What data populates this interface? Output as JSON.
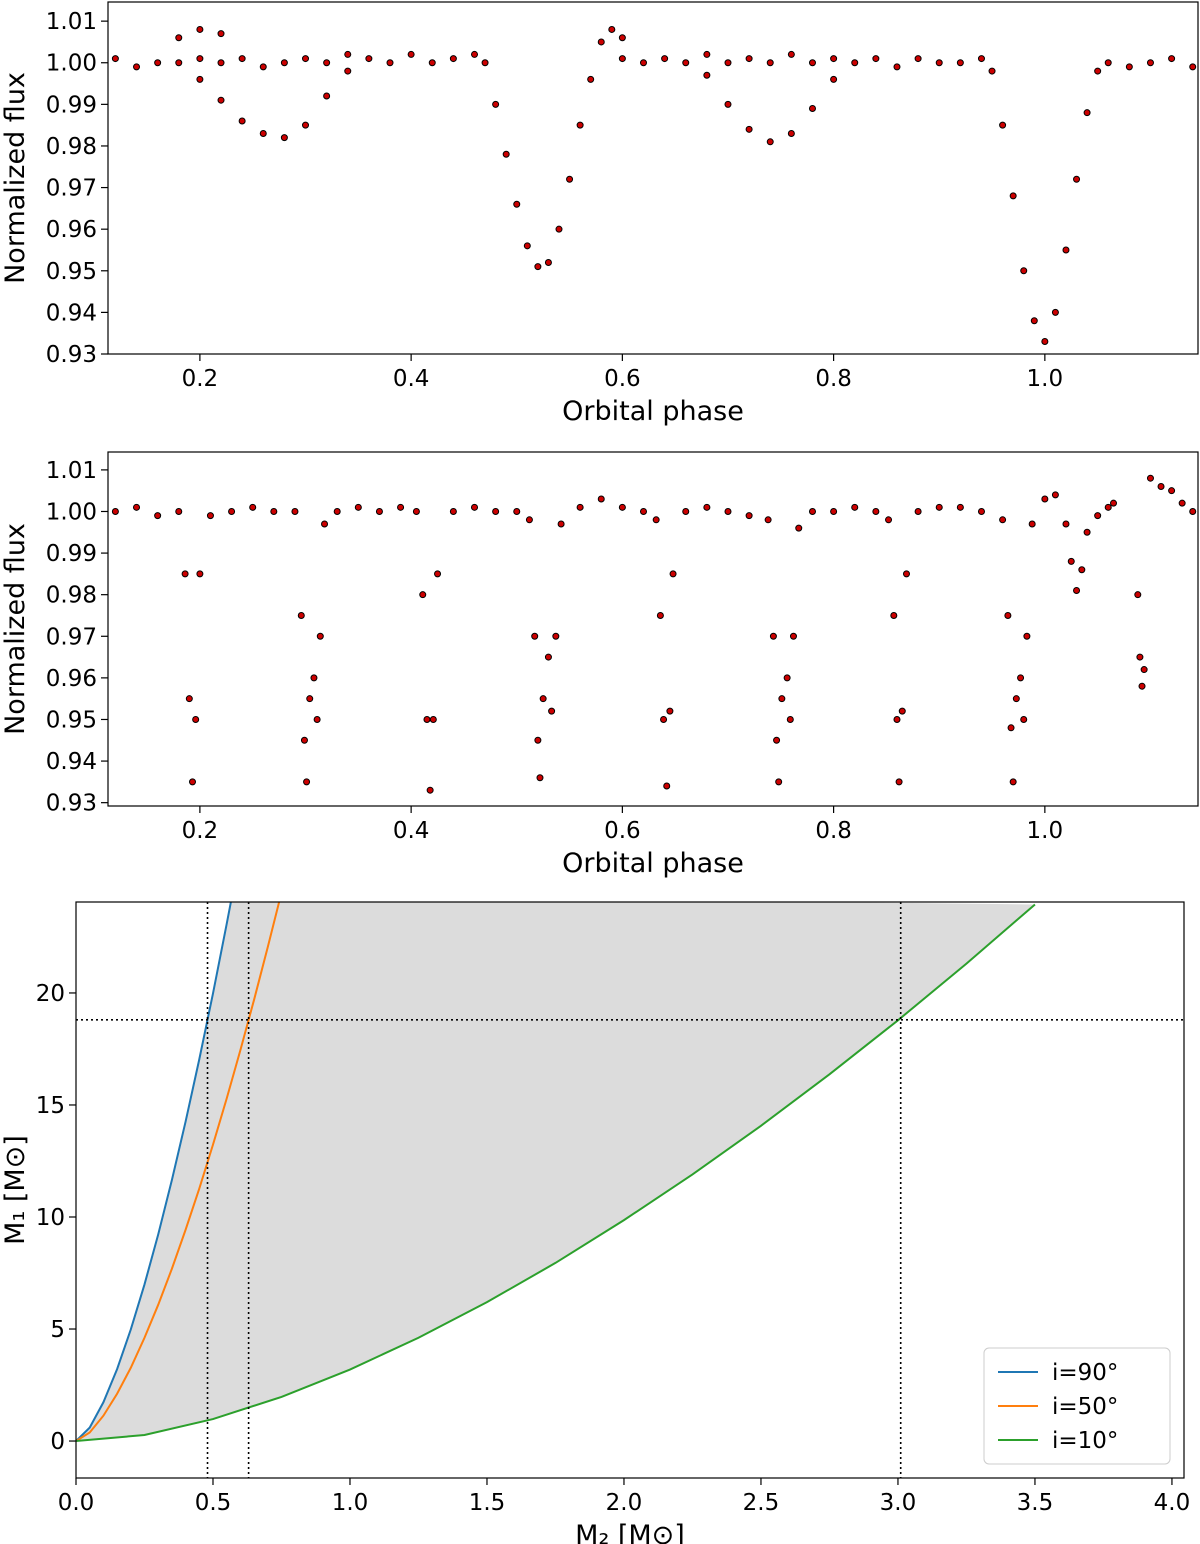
{
  "chart_data": [
    {
      "type": "scatter",
      "xlabel": "Orbital phase",
      "ylabel": "Normalized flux",
      "color": "#cc0000",
      "edgecolor": "#000000",
      "xlim": [
        0.113,
        1.145
      ],
      "ylim": [
        0.93,
        1.0146
      ],
      "xticks": [
        0.2,
        0.4,
        0.6,
        0.8,
        {
          "value": 1,
          "label": "1.0"
        }
      ],
      "yticks": [
        0.93,
        0.94,
        0.95,
        0.96,
        0.97,
        0.98,
        0.99,
        {
          "value": 1,
          "label": "1.00"
        },
        1.01
      ],
      "x": [
        0.12,
        0.14,
        0.16,
        0.18,
        0.18,
        0.2,
        0.2,
        0.2,
        0.22,
        0.22,
        0.22,
        0.24,
        0.24,
        0.26,
        0.26,
        0.28,
        0.28,
        0.3,
        0.3,
        0.32,
        0.32,
        0.34,
        0.34,
        0.36,
        0.38,
        0.4,
        0.42,
        0.44,
        0.46,
        0.47,
        0.48,
        0.49,
        0.5,
        0.51,
        0.52,
        0.53,
        0.54,
        0.55,
        0.56,
        0.57,
        0.58,
        0.59,
        0.6,
        0.6,
        0.62,
        0.64,
        0.66,
        0.68,
        0.68,
        0.7,
        0.7,
        0.72,
        0.72,
        0.74,
        0.74,
        0.76,
        0.76,
        0.78,
        0.78,
        0.8,
        0.8,
        0.82,
        0.84,
        0.86,
        0.88,
        0.9,
        0.92,
        0.94,
        0.95,
        0.96,
        0.97,
        0.98,
        0.99,
        1.0,
        1.01,
        1.02,
        1.03,
        1.04,
        1.05,
        1.06,
        1.08,
        1.1,
        1.12,
        1.14
      ],
      "values": [
        1.001,
        0.999,
        1.0,
        1.006,
        1.0,
        1.008,
        0.996,
        1.001,
        1.007,
        0.991,
        1.0,
        0.986,
        1.001,
        0.983,
        0.999,
        0.982,
        1.0,
        0.985,
        1.001,
        0.992,
        1.0,
        0.998,
        1.002,
        1.001,
        1.0,
        1.002,
        1.0,
        1.001,
        1.002,
        1.0,
        0.99,
        0.978,
        0.966,
        0.956,
        0.951,
        0.952,
        0.96,
        0.972,
        0.985,
        0.996,
        1.005,
        1.008,
        1.006,
        1.001,
        1.0,
        1.001,
        1.0,
        0.997,
        1.002,
        0.99,
        1.0,
        0.984,
        1.001,
        0.981,
        1.0,
        0.983,
        1.002,
        0.989,
        1.0,
        0.996,
        1.001,
        1.0,
        1.001,
        0.999,
        1.001,
        1.0,
        1.0,
        1.001,
        0.998,
        0.985,
        0.968,
        0.95,
        0.938,
        0.933,
        0.94,
        0.955,
        0.972,
        0.988,
        0.998,
        1.0,
        0.999,
        1.0,
        1.001,
        0.999
      ]
    },
    {
      "type": "scatter",
      "xlabel": "Orbital phase",
      "ylabel": "Normalized flux",
      "color": "#cc0000",
      "edgecolor": "#000000",
      "xlim": [
        0.113,
        1.145
      ],
      "ylim": [
        0.9292,
        1.0143
      ],
      "xticks": [
        0.2,
        0.4,
        0.6,
        0.8,
        {
          "value": 1,
          "label": "1.0"
        }
      ],
      "yticks": [
        0.93,
        0.94,
        0.95,
        0.96,
        0.97,
        0.98,
        0.99,
        {
          "value": 1,
          "label": "1.00"
        },
        1.01
      ],
      "x": [
        0.12,
        0.14,
        0.16,
        0.18,
        0.186,
        0.19,
        0.193,
        0.196,
        0.2,
        0.21,
        0.23,
        0.25,
        0.27,
        0.29,
        0.296,
        0.299,
        0.301,
        0.304,
        0.308,
        0.311,
        0.314,
        0.318,
        0.33,
        0.35,
        0.37,
        0.39,
        0.405,
        0.411,
        0.415,
        0.418,
        0.421,
        0.425,
        0.44,
        0.46,
        0.48,
        0.5,
        0.512,
        0.517,
        0.52,
        0.522,
        0.525,
        0.53,
        0.533,
        0.537,
        0.542,
        0.56,
        0.58,
        0.6,
        0.62,
        0.632,
        0.636,
        0.639,
        0.642,
        0.645,
        0.648,
        0.66,
        0.68,
        0.7,
        0.72,
        0.738,
        0.743,
        0.746,
        0.748,
        0.751,
        0.756,
        0.759,
        0.762,
        0.767,
        0.78,
        0.8,
        0.82,
        0.84,
        0.852,
        0.857,
        0.86,
        0.862,
        0.865,
        0.869,
        0.88,
        0.9,
        0.92,
        0.94,
        0.96,
        0.965,
        0.968,
        0.97,
        0.973,
        0.977,
        0.98,
        0.983,
        0.988,
        1.0,
        1.01,
        1.02,
        1.025,
        1.03,
        1.035,
        1.04,
        1.05,
        1.06,
        1.065,
        1.088,
        1.09,
        1.092,
        1.094,
        1.1,
        1.11,
        1.12,
        1.13,
        1.14
      ],
      "values": [
        1.0,
        1.001,
        0.999,
        1.0,
        0.985,
        0.955,
        0.935,
        0.95,
        0.985,
        0.999,
        1.0,
        1.001,
        1.0,
        1.0,
        0.975,
        0.945,
        0.935,
        0.955,
        0.96,
        0.95,
        0.97,
        0.997,
        1.0,
        1.001,
        1.0,
        1.001,
        1.0,
        0.98,
        0.95,
        0.933,
        0.95,
        0.985,
        1.0,
        1.001,
        1.0,
        1.0,
        0.998,
        0.97,
        0.945,
        0.936,
        0.955,
        0.965,
        0.952,
        0.97,
        0.997,
        1.001,
        1.003,
        1.001,
        1.0,
        0.998,
        0.975,
        0.95,
        0.934,
        0.952,
        0.985,
        1.0,
        1.001,
        1.0,
        0.999,
        0.998,
        0.97,
        0.945,
        0.935,
        0.955,
        0.96,
        0.95,
        0.97,
        0.996,
        1.0,
        1.0,
        1.001,
        1.0,
        0.998,
        0.975,
        0.95,
        0.935,
        0.952,
        0.985,
        1.0,
        1.001,
        1.001,
        1.0,
        0.998,
        0.975,
        0.948,
        0.935,
        0.955,
        0.96,
        0.95,
        0.97,
        0.997,
        1.003,
        1.004,
        0.997,
        0.988,
        0.981,
        0.986,
        0.995,
        0.999,
        1.001,
        1.002,
        0.98,
        0.965,
        0.958,
        0.962,
        1.008,
        1.006,
        1.005,
        1.002,
        1.0
      ]
    },
    {
      "type": "line",
      "xlabel": "M₂ [M⊙]",
      "ylabel": "M₁ [M⊙]",
      "xlim": [
        0,
        4.044
      ],
      "ylim": [
        -1.65,
        24.06
      ],
      "xticks": [
        {
          "value": 0,
          "label": "0.0"
        },
        0.5,
        {
          "value": 1,
          "label": "1.0"
        },
        1.5,
        {
          "value": 2,
          "label": "2.0"
        },
        2.5,
        {
          "value": 3,
          "label": "3.0"
        },
        3.5,
        {
          "value": 4,
          "label": "4.0"
        }
      ],
      "yticks": [
        0,
        5,
        10,
        15,
        20
      ],
      "fill_color": "#dcdcdc",
      "legend": "lower right",
      "vlines": [
        0.48,
        0.63,
        3.01
      ],
      "hlines": [
        18.8
      ],
      "series": [
        {
          "name": "i=90°",
          "color": "#1f77b4",
          "x": [
            0,
            0.05,
            0.1,
            0.15,
            0.2,
            0.25,
            0.3,
            0.35,
            0.4,
            0.45,
            0.5,
            0.55,
            0.57
          ],
          "values": [
            0,
            0.598,
            1.73,
            3.21,
            4.98,
            6.99,
            9.22,
            11.65,
            14.26,
            17.04,
            19.98,
            23.08,
            24.36
          ]
        },
        {
          "name": "i=50°",
          "color": "#ff7f0e",
          "x": [
            0,
            0.05,
            0.1,
            0.15,
            0.2,
            0.25,
            0.3,
            0.35,
            0.4,
            0.45,
            0.5,
            0.55,
            0.6,
            0.65,
            0.7,
            0.75
          ],
          "values": [
            0,
            0.38,
            1.13,
            2.11,
            3.27,
            4.61,
            6.08,
            7.69,
            9.43,
            11.27,
            13.23,
            15.29,
            17.45,
            19.7,
            22.05,
            24.48
          ]
        },
        {
          "name": "i=10°",
          "color": "#2ca02c",
          "x": [
            0,
            0.25,
            0.5,
            0.75,
            1,
            1.25,
            1.5,
            1.75,
            2,
            2.25,
            2.5,
            2.75,
            3,
            3.25,
            3.5
          ],
          "values": [
            0,
            0.27,
            0.98,
            1.97,
            3.19,
            4.61,
            6.2,
            7.95,
            9.86,
            11.9,
            14.07,
            16.37,
            18.78,
            21.31,
            23.95
          ]
        }
      ]
    }
  ]
}
